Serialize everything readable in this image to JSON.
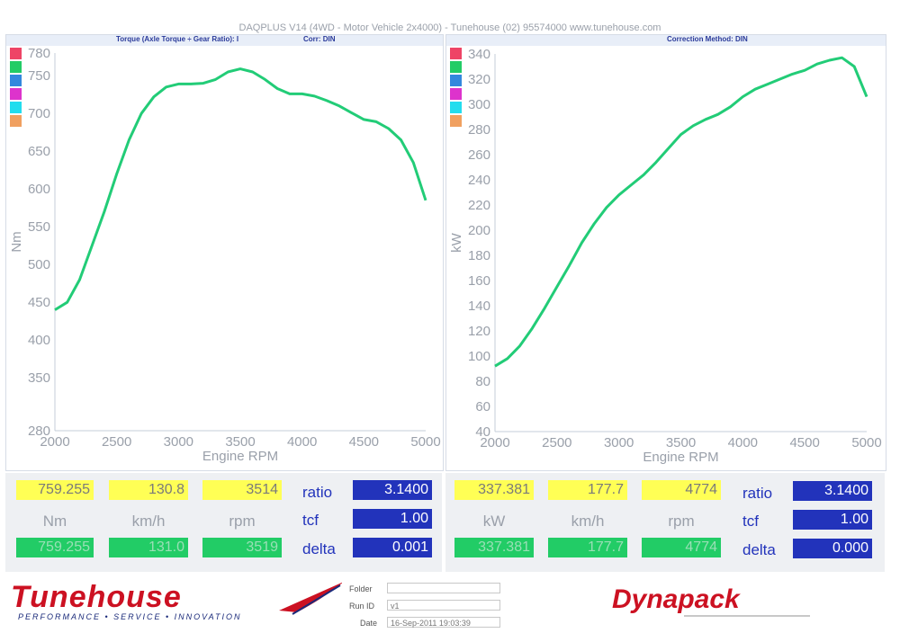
{
  "header": {
    "title": "DAQPLUS V14 (4WD - Motor Vehicle 2x4000) - Tunehouse (02) 95574000  www.tunehouse.com",
    "left_subtitle": "Torque (Axle Torque ÷ Gear Ratio): I",
    "left_corr": "Corr: DIN",
    "right_subtitle": "Correction Method: DIN"
  },
  "legend_colors": [
    "#ee4466",
    "#22cc66",
    "#3388dd",
    "#dd33cc",
    "#22ddee",
    "#f0a060"
  ],
  "chart_data": [
    {
      "type": "line",
      "xlabel": "Engine RPM",
      "ylabel": "Nm",
      "xlim": [
        2000,
        5000
      ],
      "x_ticks": [
        2000,
        2500,
        3000,
        3500,
        4000,
        4500,
        5000
      ],
      "y_ticks": [
        280,
        350,
        400,
        450,
        500,
        550,
        600,
        650,
        700,
        750,
        780
      ],
      "series": [
        {
          "color": "#22cc77",
          "x": [
            2000,
            2100,
            2200,
            2300,
            2400,
            2500,
            2600,
            2700,
            2800,
            2900,
            3000,
            3100,
            3200,
            3300,
            3400,
            3500,
            3600,
            3700,
            3800,
            3900,
            4000,
            4100,
            4200,
            4300,
            4400,
            4500,
            4600,
            4700,
            4800,
            4900,
            5000
          ],
          "y": [
            440,
            450,
            480,
            525,
            570,
            620,
            665,
            700,
            722,
            735,
            739,
            739,
            740,
            745,
            755,
            759,
            755,
            745,
            733,
            726,
            726,
            723,
            717,
            710,
            701,
            692,
            689,
            680,
            665,
            635,
            585
          ]
        }
      ]
    },
    {
      "type": "line",
      "xlabel": "Engine RPM",
      "ylabel": "kW",
      "xlim": [
        2000,
        5000
      ],
      "x_ticks": [
        2000,
        2500,
        3000,
        3500,
        4000,
        4500,
        5000
      ],
      "y_ticks": [
        40,
        60,
        80,
        100,
        120,
        140,
        160,
        180,
        200,
        220,
        240,
        260,
        280,
        300,
        320,
        340
      ],
      "series": [
        {
          "color": "#22cc77",
          "x": [
            2000,
            2100,
            2200,
            2300,
            2400,
            2500,
            2600,
            2700,
            2800,
            2900,
            3000,
            3100,
            3200,
            3300,
            3400,
            3500,
            3600,
            3700,
            3800,
            3900,
            4000,
            4100,
            4200,
            4300,
            4400,
            4500,
            4600,
            4700,
            4800,
            4900,
            5000
          ],
          "y": [
            92,
            98,
            108,
            122,
            138,
            155,
            172,
            190,
            205,
            218,
            228,
            236,
            244,
            254,
            265,
            276,
            283,
            288,
            292,
            298,
            306,
            312,
            316,
            320,
            324,
            327,
            332,
            335,
            337,
            330,
            306
          ]
        }
      ]
    }
  ],
  "left_readout": {
    "yellow": [
      "759.255",
      "130.8",
      "3514"
    ],
    "units": [
      "Nm",
      "km/h",
      "rpm"
    ],
    "green": [
      "759.255",
      "131.0",
      "3519"
    ],
    "params": [
      {
        "label": "ratio",
        "value": "3.1400"
      },
      {
        "label": "tcf",
        "value": "1.00"
      },
      {
        "label": "delta",
        "value": "0.001"
      }
    ]
  },
  "right_readout": {
    "yellow": [
      "337.381",
      "177.7",
      "4774"
    ],
    "units": [
      "kW",
      "km/h",
      "rpm"
    ],
    "green": [
      "337.381",
      "177.7",
      "4774"
    ],
    "params": [
      {
        "label": "ratio",
        "value": "3.1400"
      },
      {
        "label": "tcf",
        "value": "1.00"
      },
      {
        "label": "delta",
        "value": "0.000"
      }
    ]
  },
  "footer": {
    "tunehouse_logo": "Tunehouse",
    "tunehouse_tagline": "PERFORMANCE • SERVICE • INNOVATION",
    "folder_label": "Folder",
    "runid_label": "Run ID",
    "runid_value": "v1",
    "date_label": "Date",
    "date_value": "16-Sep-2011 19:03:39",
    "dynapack_logo": "Dynapack"
  }
}
